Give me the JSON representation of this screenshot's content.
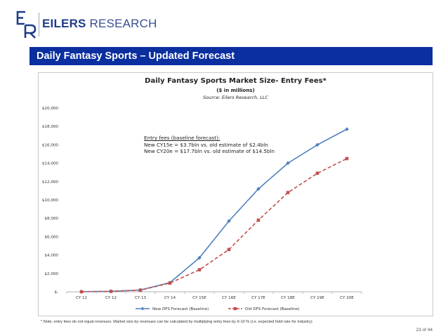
{
  "header": {
    "brand_bold": "EILERS",
    "brand_light": "RESEARCH"
  },
  "banner": {
    "title": "Daily Fantasy Sports – Updated Forecast"
  },
  "chart_data": {
    "type": "line",
    "title": "Daily Fantasy Sports Market Size- Entry Fees*",
    "subtitle": "($ in millions)",
    "source": "Source: Eilers Research, LLC",
    "categories": [
      "CY 11",
      "CY 12",
      "CY 13",
      "CY 14",
      "CY 15E",
      "CY 16E",
      "CY 17E",
      "CY 18E",
      "CY 19E",
      "CY 20E"
    ],
    "ylim": [
      0,
      20000
    ],
    "yticks": [
      {
        "value": 0,
        "label": "$-"
      },
      {
        "value": 2000,
        "label": "$2,000"
      },
      {
        "value": 4000,
        "label": "$4,000"
      },
      {
        "value": 6000,
        "label": "$6,000"
      },
      {
        "value": 8000,
        "label": "$8,000"
      },
      {
        "value": 10000,
        "label": "$10,000"
      },
      {
        "value": 12000,
        "label": "$12,000"
      },
      {
        "value": 14000,
        "label": "$14,000"
      },
      {
        "value": 16000,
        "label": "$16,000"
      },
      {
        "value": 18000,
        "label": "$18,000"
      },
      {
        "value": 20000,
        "label": "$20,000"
      }
    ],
    "series": [
      {
        "name": "New DFS Forecast (Baseline)",
        "color": "#4f81bd",
        "dash": false,
        "marker": "diamond",
        "values": [
          10,
          50,
          200,
          1000,
          3700,
          7700,
          11200,
          14000,
          16000,
          17700
        ]
      },
      {
        "name": "Old DFS Forecast (Baseline)",
        "color": "#c0504d",
        "dash": true,
        "marker": "square",
        "values": [
          10,
          50,
          180,
          950,
          2400,
          4600,
          7800,
          10800,
          12900,
          14500
        ]
      }
    ],
    "annotation": {
      "heading": "Entry fees (baseline forecast):",
      "line1": "New CY15e = $3.7bln vs. old estimate of $2.4bln",
      "line2": "New CY20e = $17.7bln vs. old estimate of $14.5bln"
    }
  },
  "footer": {
    "note": "* Note; entry fees do not equal revenues. Market size by revenues can be calculated by multiplying entry fees by 9-10 % (i.e. expected hold rate for industry)",
    "page": "23 of 44"
  }
}
